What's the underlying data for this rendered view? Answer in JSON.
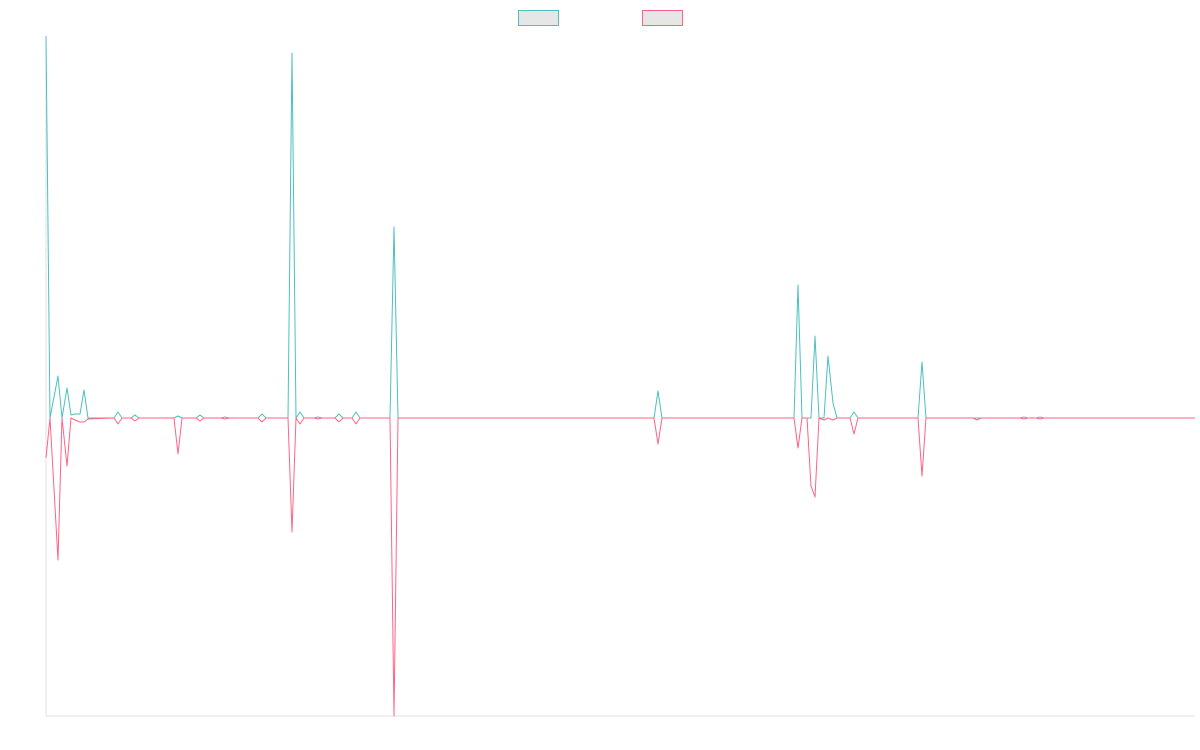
{
  "chart_data": {
    "type": "line",
    "x": [
      0,
      4,
      12,
      16,
      21,
      25,
      29,
      34,
      38,
      42,
      68,
      72,
      76,
      85,
      89,
      93,
      128,
      132,
      136,
      150,
      154,
      158,
      175,
      179,
      183,
      212,
      216,
      220,
      242,
      246,
      250,
      254,
      258,
      268,
      272,
      276,
      289,
      293,
      297,
      306,
      310,
      314,
      344,
      348,
      352,
      608,
      612,
      616,
      748,
      752,
      756,
      761,
      765,
      769,
      773,
      778,
      782,
      787,
      791,
      804,
      808,
      812,
      872,
      876,
      880,
      927,
      931,
      935,
      974,
      978,
      982,
      990,
      994,
      998,
      1149
    ],
    "xlim": [
      0,
      1149
    ],
    "ylim": [
      -298,
      382
    ],
    "legend": "top",
    "series": [
      {
        "color": "#4bc0c0",
        "values": [
          382,
          0,
          42,
          0,
          30,
          3,
          4,
          4,
          28,
          0,
          0,
          6,
          0,
          0,
          3,
          0,
          0,
          2,
          0,
          0,
          3,
          0,
          0,
          1,
          0,
          0,
          4,
          0,
          0,
          365,
          0,
          6,
          0,
          0,
          1,
          0,
          0,
          4,
          0,
          0,
          6,
          0,
          0,
          191,
          0,
          0,
          27,
          0,
          0,
          133,
          0,
          0,
          0,
          82,
          0,
          0,
          62,
          15,
          0,
          0,
          6,
          0,
          0,
          56,
          0,
          0,
          0,
          0,
          0,
          1,
          0,
          0,
          1,
          0,
          0
        ]
      },
      {
        "color": "#ff6384",
        "values": [
          -40,
          0,
          -142,
          0,
          -48,
          0,
          -2,
          -4,
          -4,
          -1,
          0,
          -6,
          0,
          0,
          -3,
          0,
          0,
          -36,
          0,
          0,
          -3,
          0,
          0,
          -1,
          0,
          0,
          -4,
          0,
          0,
          -114,
          0,
          -6,
          0,
          0,
          -1,
          0,
          0,
          -4,
          0,
          0,
          -6,
          0,
          0,
          -298,
          0,
          0,
          -26,
          0,
          0,
          -30,
          0,
          0,
          -68,
          -79,
          0,
          -2,
          0,
          -2,
          0,
          0,
          -16,
          0,
          0,
          -58,
          0,
          0,
          -2,
          0,
          0,
          -1,
          0,
          0,
          -1,
          0,
          0
        ]
      }
    ]
  }
}
